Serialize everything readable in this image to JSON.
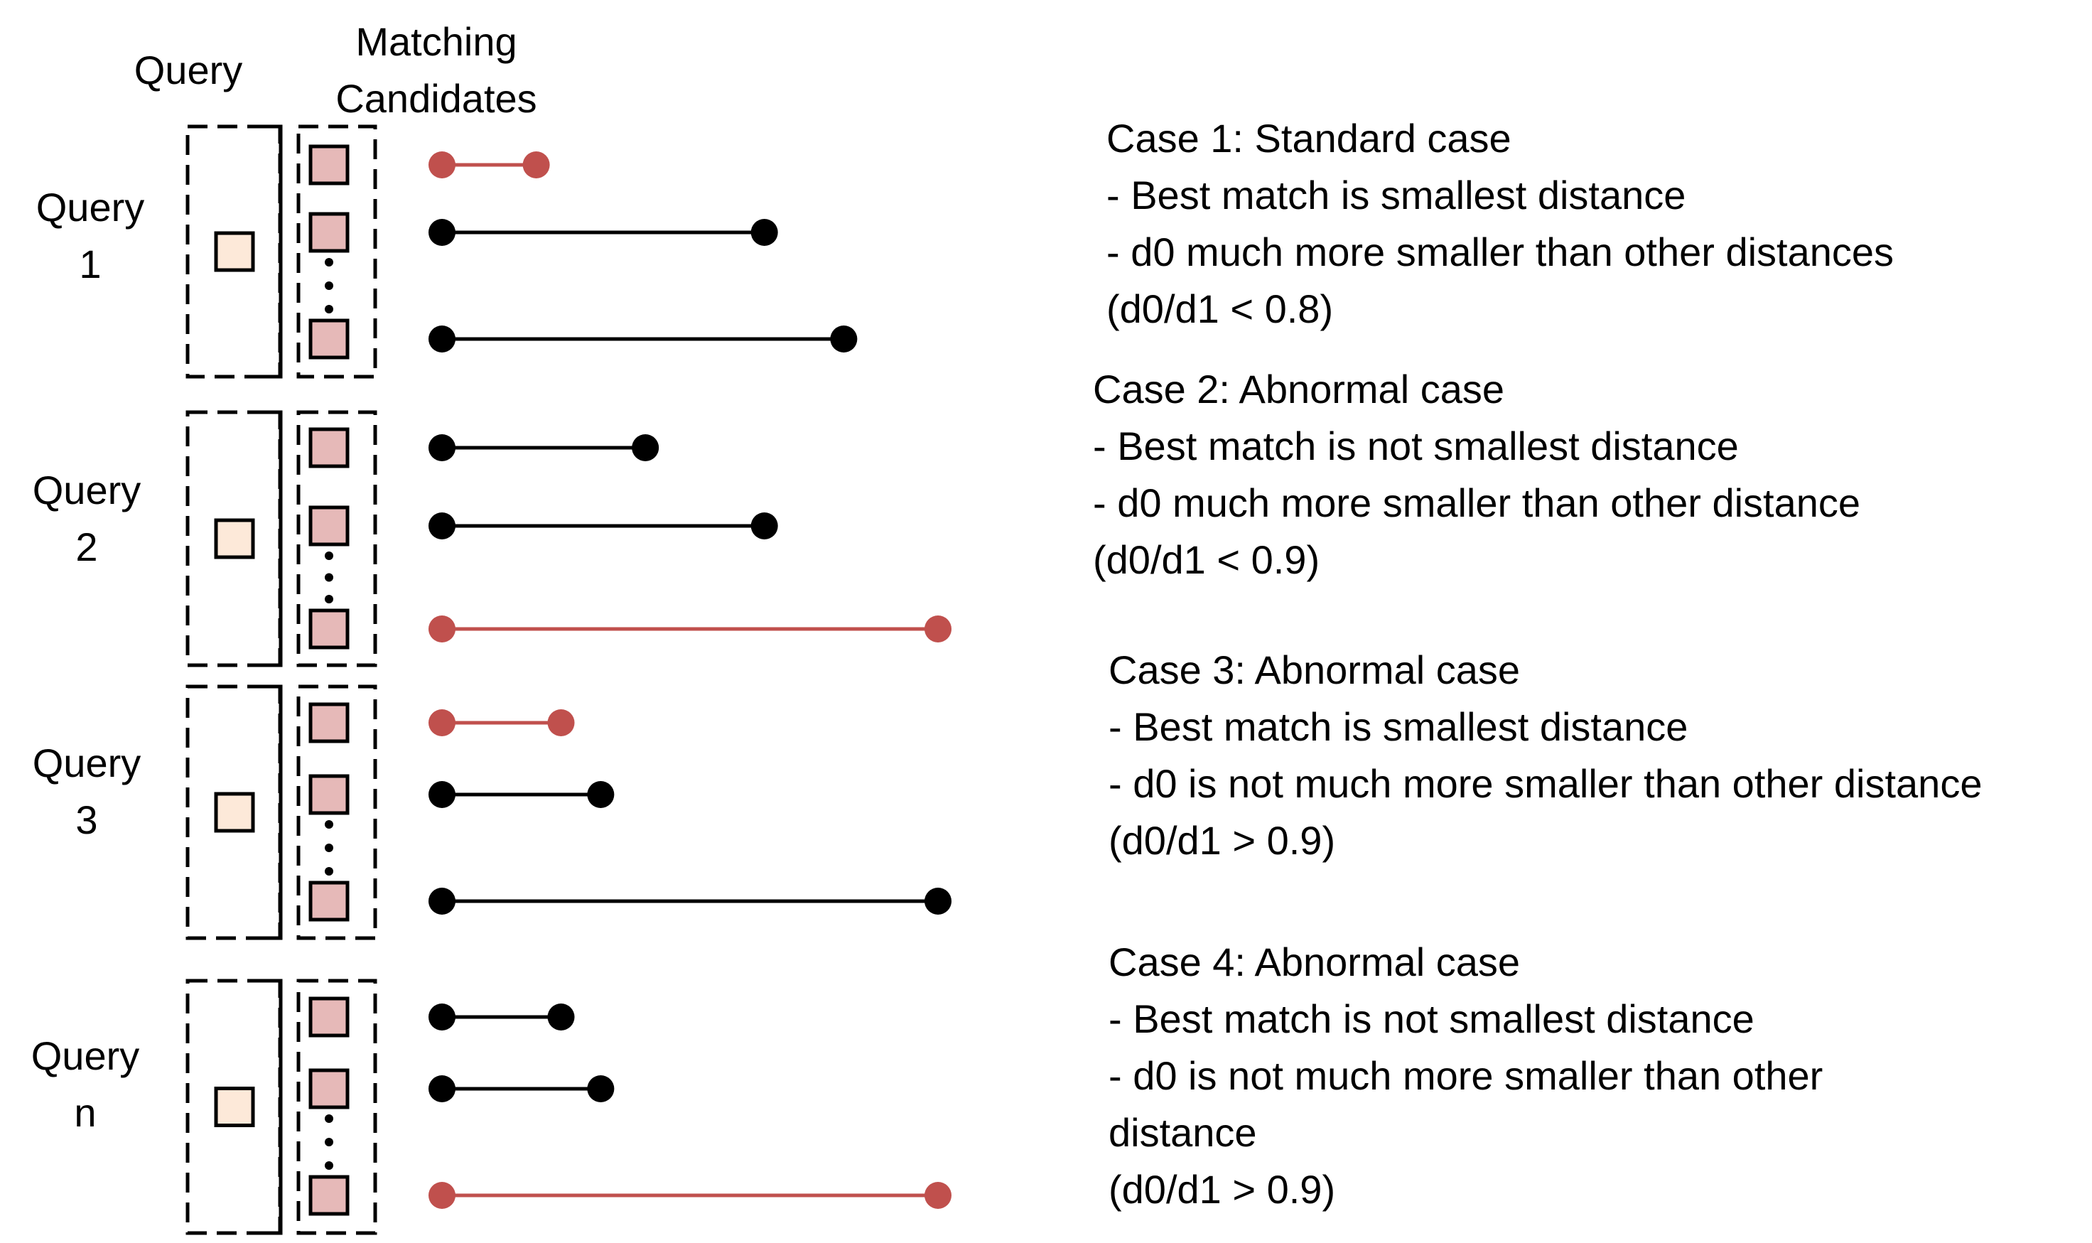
{
  "header": {
    "query_label": "Query",
    "candidates_label_line1": "Matching",
    "candidates_label_line2": "Candidates"
  },
  "colors": {
    "best_match": "#c0504d",
    "distance": "#000000",
    "query_fill": "#fde9d9",
    "candidate_fill": "#e6b9b8",
    "box_border": "#000000"
  },
  "groups": [
    {
      "label_line1": "Query",
      "label_line2": "1",
      "candidates": [
        {
          "role": "best-match",
          "length": 0.19
        },
        {
          "role": "distance",
          "length": 0.65
        },
        {
          "role": "distance",
          "length": 0.81
        }
      ],
      "case_lines": [
        "Case 1: Standard case",
        "- Best match is smallest distance",
        "- d0 much more smaller than other distances",
        "(d0/d1 < 0.8)"
      ]
    },
    {
      "label_line1": "Query",
      "label_line2": "2",
      "candidates": [
        {
          "role": "distance",
          "length": 0.41
        },
        {
          "role": "distance",
          "length": 0.65
        },
        {
          "role": "best-match",
          "length": 1.0
        }
      ],
      "case_lines": [
        "Case 2: Abnormal case",
        "- Best match is not smallest distance",
        "- d0 much more smaller than other distance",
        "(d0/d1 < 0.9)"
      ]
    },
    {
      "label_line1": "Query",
      "label_line2": "3",
      "candidates": [
        {
          "role": "best-match",
          "length": 0.24
        },
        {
          "role": "distance",
          "length": 0.32
        },
        {
          "role": "distance",
          "length": 1.0
        }
      ],
      "case_lines": [
        "Case 3: Abnormal case",
        "- Best match is smallest distance",
        "- d0 is not much more smaller than other distance",
        "(d0/d1 > 0.9)"
      ]
    },
    {
      "label_line1": "Query",
      "label_line2": "n",
      "candidates": [
        {
          "role": "distance",
          "length": 0.24
        },
        {
          "role": "distance",
          "length": 0.32
        },
        {
          "role": "best-match",
          "length": 1.0
        }
      ],
      "case_lines": [
        "Case 4: Abnormal case",
        "- Best match is not smallest distance",
        "- d0 is not much more smaller than other",
        "distance",
        "(d0/d1 > 0.9)"
      ]
    }
  ]
}
